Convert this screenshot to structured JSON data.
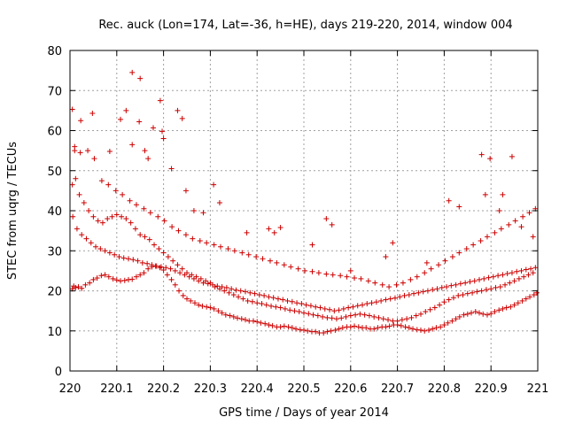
{
  "chart_data": {
    "type": "scatter",
    "title": "Rec. auck (Lon=174, Lat=-36, h=HE), days 219-220, 2014, window 004",
    "xlabel": "GPS time / Days of year 2014",
    "ylabel": "STEC from uqrg / TECUs",
    "xlim": [
      220,
      221
    ],
    "ylim": [
      0,
      80
    ],
    "xticks": [
      220,
      220.1,
      220.2,
      220.3,
      220.4,
      220.5,
      220.6,
      220.7,
      220.8,
      220.9,
      221
    ],
    "xtick_labels": [
      "220",
      "220.1",
      "220.2",
      "220.3",
      "220.4",
      "220.5",
      "220.6",
      "220.7",
      "220.8",
      "220.9",
      "221"
    ],
    "yticks": [
      0,
      10,
      20,
      30,
      40,
      50,
      60,
      70,
      80
    ],
    "ytick_labels": [
      "0",
      "10",
      "20",
      "30",
      "40",
      "50",
      "60",
      "70",
      "80"
    ],
    "grid": true,
    "marker": "+",
    "color": "#cc0000",
    "series": [
      {
        "name": "STEC",
        "x": [
          220.005,
          220.008,
          220.012,
          220.018,
          220.025,
          220.033,
          220.042,
          220.05,
          220.058,
          220.067,
          220.075,
          220.083,
          220.092,
          220.1,
          220.108,
          220.117,
          220.125,
          220.133,
          220.142,
          220.15,
          220.158,
          220.167,
          220.175,
          220.183,
          220.192,
          220.2,
          220.208,
          220.217,
          220.225,
          220.233,
          220.242,
          220.25,
          220.258,
          220.267,
          220.275,
          220.283,
          220.292,
          220.3,
          220.308,
          220.317,
          220.325,
          220.333,
          220.342,
          220.35,
          220.358,
          220.367,
          220.375,
          220.383,
          220.392,
          220.4,
          220.408,
          220.417,
          220.425,
          220.433,
          220.442,
          220.45,
          220.458,
          220.467,
          220.475,
          220.483,
          220.492,
          220.5,
          220.508,
          220.517,
          220.525,
          220.533,
          220.542,
          220.55,
          220.558,
          220.567,
          220.575,
          220.583,
          220.592,
          220.6,
          220.608,
          220.617,
          220.625,
          220.633,
          220.642,
          220.65,
          220.658,
          220.667,
          220.675,
          220.683,
          220.692,
          220.7,
          220.708,
          220.717,
          220.725,
          220.733,
          220.742,
          220.75,
          220.758,
          220.767,
          220.775,
          220.783,
          220.792,
          220.8,
          220.808,
          220.817,
          220.825,
          220.833,
          220.842,
          220.85,
          220.858,
          220.867,
          220.875,
          220.883,
          220.892,
          220.9,
          220.908,
          220.917,
          220.925,
          220.933,
          220.942,
          220.95,
          220.958,
          220.967,
          220.975,
          220.983,
          220.992,
          220.998,
          220.005,
          220.012,
          220.02,
          220.03,
          220.04,
          220.05,
          220.06,
          220.07,
          220.08,
          220.09,
          220.1,
          220.11,
          220.12,
          220.13,
          220.14,
          220.15,
          220.16,
          220.17,
          220.18,
          220.19,
          220.2,
          220.21,
          220.22,
          220.23,
          220.24,
          220.25,
          220.26,
          220.27,
          220.28,
          220.29,
          220.3,
          220.31,
          220.32,
          220.33,
          220.34,
          220.35,
          220.36,
          220.37,
          220.38,
          220.39,
          220.4,
          220.41,
          220.42,
          220.43,
          220.44,
          220.45,
          220.46,
          220.47,
          220.48,
          220.49,
          220.5,
          220.51,
          220.52,
          220.53,
          220.54,
          220.55,
          220.56,
          220.57,
          220.58,
          220.59,
          220.6,
          220.61,
          220.62,
          220.63,
          220.64,
          220.65,
          220.66,
          220.67,
          220.68,
          220.69,
          220.7,
          220.71,
          220.72,
          220.73,
          220.74,
          220.75,
          220.76,
          220.77,
          220.78,
          220.79,
          220.8,
          220.81,
          220.82,
          220.83,
          220.84,
          220.85,
          220.86,
          220.87,
          220.88,
          220.89,
          220.9,
          220.91,
          220.92,
          220.93,
          220.94,
          220.95,
          220.96,
          220.97,
          220.98,
          220.99,
          220.006,
          220.015,
          220.025,
          220.035,
          220.045,
          220.055,
          220.065,
          220.075,
          220.085,
          220.095,
          220.105,
          220.115,
          220.125,
          220.135,
          220.145,
          220.155,
          220.165,
          220.175,
          220.185,
          220.195,
          220.205,
          220.215,
          220.225,
          220.235,
          220.245,
          220.255,
          220.265,
          220.275,
          220.285,
          220.295,
          220.305,
          220.315,
          220.325,
          220.335,
          220.345,
          220.355,
          220.365,
          220.375,
          220.385,
          220.395,
          220.405,
          220.415,
          220.425,
          220.435,
          220.445,
          220.455,
          220.465,
          220.475,
          220.485,
          220.495,
          220.505,
          220.515,
          220.525,
          220.535,
          220.545,
          220.555,
          220.565,
          220.575,
          220.585,
          220.595,
          220.605,
          220.615,
          220.625,
          220.635,
          220.645,
          220.655,
          220.665,
          220.675,
          220.685,
          220.695,
          220.705,
          220.715,
          220.725,
          220.735,
          220.745,
          220.755,
          220.765,
          220.775,
          220.785,
          220.795,
          220.805,
          220.815,
          220.825,
          220.835,
          220.845,
          220.855,
          220.865,
          220.875,
          220.885,
          220.895,
          220.905,
          220.915,
          220.925,
          220.935,
          220.945,
          220.955,
          220.965,
          220.975,
          220.985,
          220.995,
          220.01,
          220.022,
          220.038,
          220.052,
          220.068,
          220.082,
          220.098,
          220.112,
          220.128,
          220.142,
          220.158,
          220.172,
          220.188,
          220.202,
          220.218,
          220.232,
          220.248,
          220.262,
          220.278,
          220.292,
          220.308,
          220.322,
          220.338,
          220.352,
          220.368,
          220.382,
          220.398,
          220.412,
          220.428,
          220.442,
          220.458,
          220.472,
          220.488,
          220.502,
          220.518,
          220.532,
          220.548,
          220.562,
          220.578,
          220.592,
          220.608,
          220.622,
          220.638,
          220.652,
          220.668,
          220.682,
          220.698,
          220.712,
          220.728,
          220.742,
          220.758,
          220.772,
          220.788,
          220.802,
          220.818,
          220.832,
          220.848,
          220.862,
          220.878,
          220.892,
          220.908,
          220.922,
          220.938,
          220.952,
          220.968,
          220.982,
          220.995,
          220.133,
          220.15,
          220.12,
          220.193,
          220.23,
          220.197,
          220.167,
          220.108,
          220.24,
          220.005,
          220.048,
          220.023,
          220.085,
          220.01,
          220.148,
          220.178,
          220.133,
          220.2,
          220.16,
          220.217,
          220.307,
          220.248,
          220.32,
          220.265,
          220.285,
          220.378,
          220.425,
          220.437,
          220.45,
          220.548,
          220.56,
          220.518,
          220.6,
          220.675,
          220.69,
          220.763,
          220.81,
          220.832,
          220.88,
          220.888,
          220.898,
          220.918,
          220.925,
          220.945,
          220.965,
          220.99
        ],
        "y": [
          20.5,
          21.2,
          20.8,
          21.0,
          20.6,
          21.5,
          22.0,
          22.8,
          23.2,
          23.8,
          24.0,
          23.5,
          23.0,
          22.7,
          22.5,
          22.6,
          22.8,
          22.9,
          23.5,
          24.0,
          24.5,
          25.5,
          26.0,
          26.2,
          25.8,
          25.2,
          24.0,
          22.8,
          21.5,
          20.0,
          18.8,
          18.0,
          17.5,
          17.0,
          16.5,
          16.2,
          16.0,
          15.8,
          15.5,
          15.0,
          14.5,
          14.0,
          13.8,
          13.5,
          13.2,
          13.0,
          12.8,
          12.5,
          12.5,
          12.3,
          12.0,
          11.8,
          11.5,
          11.3,
          11.0,
          11.0,
          11.2,
          11.0,
          10.8,
          10.5,
          10.3,
          10.2,
          10.0,
          9.8,
          9.8,
          9.5,
          9.5,
          9.8,
          10.0,
          10.2,
          10.5,
          10.8,
          11.0,
          11.0,
          11.2,
          11.0,
          10.8,
          10.8,
          10.5,
          10.5,
          10.8,
          11.0,
          11.0,
          11.2,
          11.5,
          11.5,
          11.3,
          11.0,
          10.8,
          10.5,
          10.3,
          10.2,
          10.0,
          10.2,
          10.5,
          10.8,
          11.0,
          11.5,
          12.0,
          12.5,
          13.0,
          13.5,
          14.0,
          14.2,
          14.5,
          14.8,
          14.5,
          14.2,
          14.0,
          14.3,
          14.8,
          15.2,
          15.5,
          15.8,
          16.0,
          16.5,
          17.0,
          17.5,
          18.0,
          18.5,
          19.0,
          19.5,
          46.5,
          48.0,
          44.0,
          42.0,
          40.0,
          38.5,
          37.5,
          37.0,
          38.0,
          38.5,
          39.0,
          38.5,
          38.0,
          37.0,
          35.5,
          34.0,
          33.5,
          32.8,
          31.5,
          30.5,
          29.5,
          28.5,
          27.5,
          26.5,
          25.5,
          24.5,
          24.0,
          23.5,
          23.0,
          22.5,
          22.0,
          21.0,
          20.5,
          20.0,
          19.5,
          19.0,
          18.5,
          18.0,
          17.5,
          17.3,
          17.0,
          16.8,
          16.5,
          16.2,
          16.0,
          15.8,
          15.5,
          15.2,
          15.0,
          14.8,
          14.5,
          14.3,
          14.0,
          13.8,
          13.5,
          13.3,
          13.2,
          13.0,
          13.2,
          13.5,
          13.8,
          14.0,
          14.2,
          14.0,
          13.8,
          13.5,
          13.3,
          13.0,
          12.8,
          12.5,
          12.5,
          12.8,
          13.0,
          13.3,
          13.8,
          14.2,
          14.8,
          15.3,
          15.8,
          16.5,
          17.2,
          17.8,
          18.3,
          18.8,
          19.0,
          19.3,
          19.5,
          19.8,
          20.0,
          20.3,
          20.5,
          20.8,
          21.0,
          21.5,
          22.0,
          22.5,
          23.0,
          23.5,
          24.0,
          24.5,
          38.5,
          35.5,
          34.0,
          33.0,
          32.0,
          31.0,
          30.5,
          30.0,
          29.5,
          29.0,
          28.5,
          28.2,
          28.0,
          27.8,
          27.5,
          27.0,
          26.8,
          26.5,
          26.2,
          26.0,
          25.8,
          25.5,
          25.0,
          24.5,
          24.0,
          23.5,
          23.0,
          22.5,
          22.0,
          21.8,
          21.5,
          21.2,
          21.0,
          20.8,
          20.5,
          20.2,
          20.0,
          19.8,
          19.5,
          19.3,
          19.0,
          18.8,
          18.5,
          18.3,
          18.0,
          17.8,
          17.5,
          17.3,
          17.0,
          16.8,
          16.5,
          16.3,
          16.0,
          15.8,
          15.5,
          15.3,
          15.0,
          15.2,
          15.5,
          15.8,
          16.0,
          16.3,
          16.5,
          16.8,
          17.0,
          17.2,
          17.5,
          17.8,
          18.0,
          18.2,
          18.5,
          18.8,
          19.0,
          19.3,
          19.5,
          19.8,
          20.0,
          20.3,
          20.5,
          20.8,
          21.0,
          21.3,
          21.5,
          21.8,
          22.0,
          22.3,
          22.5,
          22.8,
          23.0,
          23.3,
          23.5,
          23.8,
          24.0,
          24.3,
          24.5,
          24.8,
          25.0,
          25.3,
          25.5,
          25.8,
          56.0,
          54.5,
          55.0,
          53.0,
          47.5,
          46.5,
          45.0,
          44.0,
          42.5,
          41.5,
          40.5,
          39.5,
          38.5,
          37.5,
          36.0,
          35.0,
          34.0,
          33.0,
          32.5,
          32.0,
          31.5,
          31.0,
          30.5,
          30.0,
          29.5,
          29.0,
          28.5,
          28.0,
          27.5,
          27.0,
          26.5,
          26.0,
          25.5,
          25.0,
          24.8,
          24.5,
          24.2,
          24.0,
          23.8,
          23.5,
          23.2,
          23.0,
          22.5,
          22.0,
          21.5,
          21.0,
          21.5,
          22.0,
          22.8,
          23.5,
          24.5,
          25.5,
          26.5,
          27.5,
          28.5,
          29.5,
          30.5,
          31.5,
          32.5,
          33.5,
          34.5,
          35.5,
          36.5,
          37.5,
          38.5,
          39.5,
          40.5,
          74.5,
          73.0,
          65.0,
          67.5,
          65.0,
          59.8,
          53.0,
          62.8,
          63.0,
          65.3,
          64.3,
          62.5,
          54.8,
          55.0,
          62.2,
          60.7,
          56.5,
          58.0,
          55.0,
          50.5,
          46.5,
          45.0,
          42.0,
          40.0,
          39.5,
          34.5,
          35.5,
          34.5,
          35.8,
          38.0,
          36.5,
          31.5,
          25.0,
          28.5,
          32.0,
          27.0,
          42.5,
          41.0,
          54.0,
          44.0,
          53.0,
          40.0,
          44.0,
          53.5,
          36.0,
          33.5
        ]
      }
    ]
  }
}
